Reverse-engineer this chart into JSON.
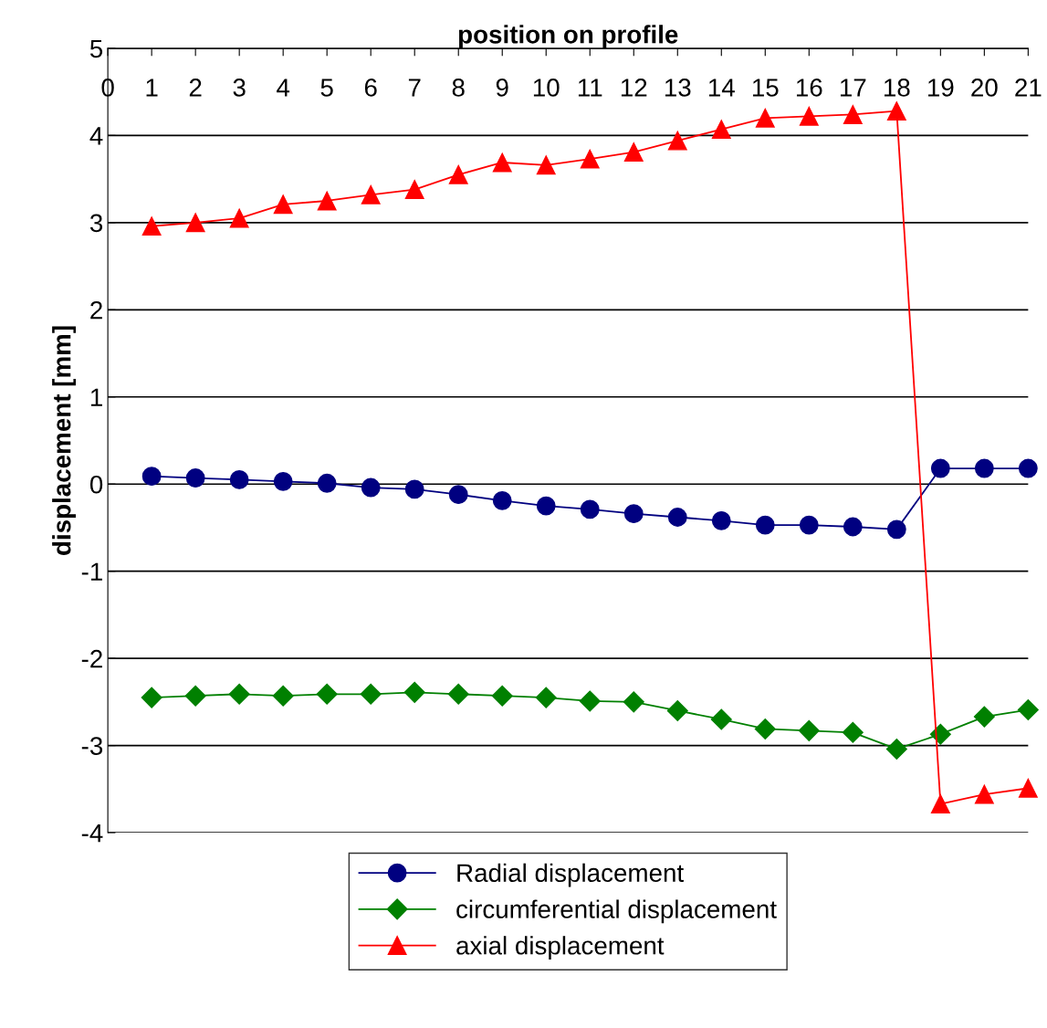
{
  "chart_data": {
    "type": "line",
    "xlabel": "position on profile",
    "ylabel": "displacement [mm]",
    "x": [
      1,
      2,
      3,
      4,
      5,
      6,
      7,
      8,
      9,
      10,
      11,
      12,
      13,
      14,
      15,
      16,
      17,
      18,
      19,
      20,
      21
    ],
    "xlim": [
      0,
      21
    ],
    "xticks": [
      0,
      1,
      2,
      3,
      4,
      5,
      6,
      7,
      8,
      9,
      10,
      11,
      12,
      13,
      14,
      15,
      16,
      17,
      18,
      19,
      20,
      21
    ],
    "ylim": [
      -4,
      5
    ],
    "yticks": [
      -4,
      -3,
      -2,
      -1,
      0,
      1,
      2,
      3,
      4,
      5
    ],
    "grid": "y",
    "legend": "bottom",
    "series": [
      {
        "name": "Radial displacement",
        "color": "#000080",
        "marker": "circle",
        "values": [
          0.09,
          0.07,
          0.05,
          0.03,
          0.01,
          -0.04,
          -0.06,
          -0.12,
          -0.19,
          -0.25,
          -0.29,
          -0.34,
          -0.38,
          -0.42,
          -0.47,
          -0.47,
          -0.49,
          -0.52,
          0.18,
          0.18,
          0.18
        ]
      },
      {
        "name": "circumferential displacement",
        "color": "#008000",
        "marker": "diamond",
        "values": [
          -2.45,
          -2.43,
          -2.41,
          -2.43,
          -2.41,
          -2.41,
          -2.39,
          -2.41,
          -2.43,
          -2.45,
          -2.49,
          -2.5,
          -2.6,
          -2.7,
          -2.81,
          -2.83,
          -2.85,
          -3.04,
          -2.87,
          -2.67,
          -2.59
        ]
      },
      {
        "name": "axial displacement",
        "color": "#ff0000",
        "marker": "triangle",
        "values": [
          2.96,
          3.0,
          3.05,
          3.21,
          3.25,
          3.32,
          3.38,
          3.55,
          3.69,
          3.66,
          3.73,
          3.81,
          3.94,
          4.07,
          4.2,
          4.22,
          4.24,
          4.28,
          -3.67,
          -3.56,
          -3.49
        ]
      }
    ]
  }
}
